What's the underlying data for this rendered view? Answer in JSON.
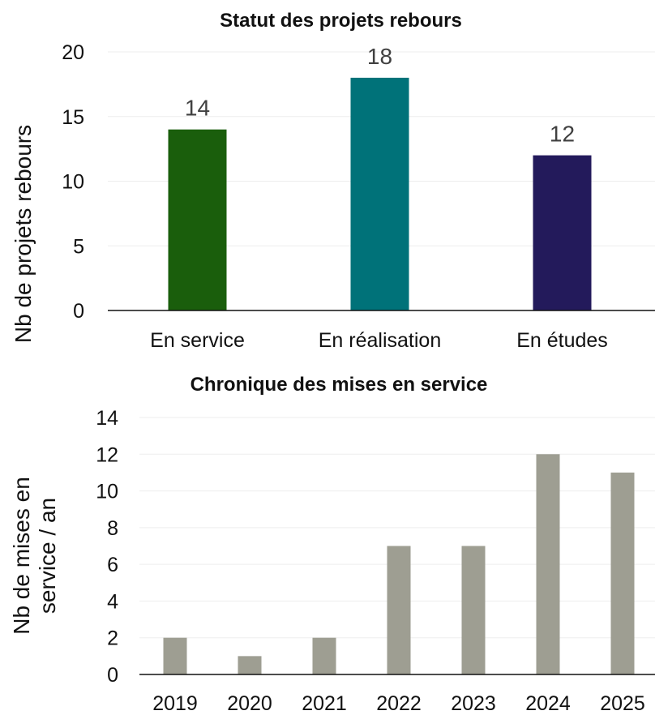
{
  "chart_data": [
    {
      "type": "bar",
      "title": "Statut des projets rebours",
      "xlabel": "",
      "ylabel": "Nb de projets rebours",
      "categories": [
        "En service",
        "En réalisation",
        "En études"
      ],
      "values": [
        14,
        18,
        12
      ],
      "data_labels": [
        "14",
        "18",
        "12"
      ],
      "colors": [
        "#1a5e0c",
        "#007279",
        "#231a5b"
      ],
      "ylim": [
        0,
        20
      ],
      "yticks": [
        0,
        5,
        10,
        15,
        20
      ],
      "grid": true,
      "legend": "none"
    },
    {
      "type": "bar",
      "title": "Chronique des mises en service",
      "xlabel": "",
      "ylabel_lines": [
        "Nb de mises en",
        "service / an"
      ],
      "categories": [
        "2019",
        "2020",
        "2021",
        "2022",
        "2023",
        "2024",
        "2025"
      ],
      "values": [
        2,
        1,
        2,
        7,
        7,
        12,
        11
      ],
      "colors": [
        "#9e9e92"
      ],
      "ylim": [
        0,
        14
      ],
      "yticks": [
        0,
        2,
        4,
        6,
        8,
        10,
        12,
        14
      ],
      "grid": true,
      "legend": "none"
    }
  ]
}
